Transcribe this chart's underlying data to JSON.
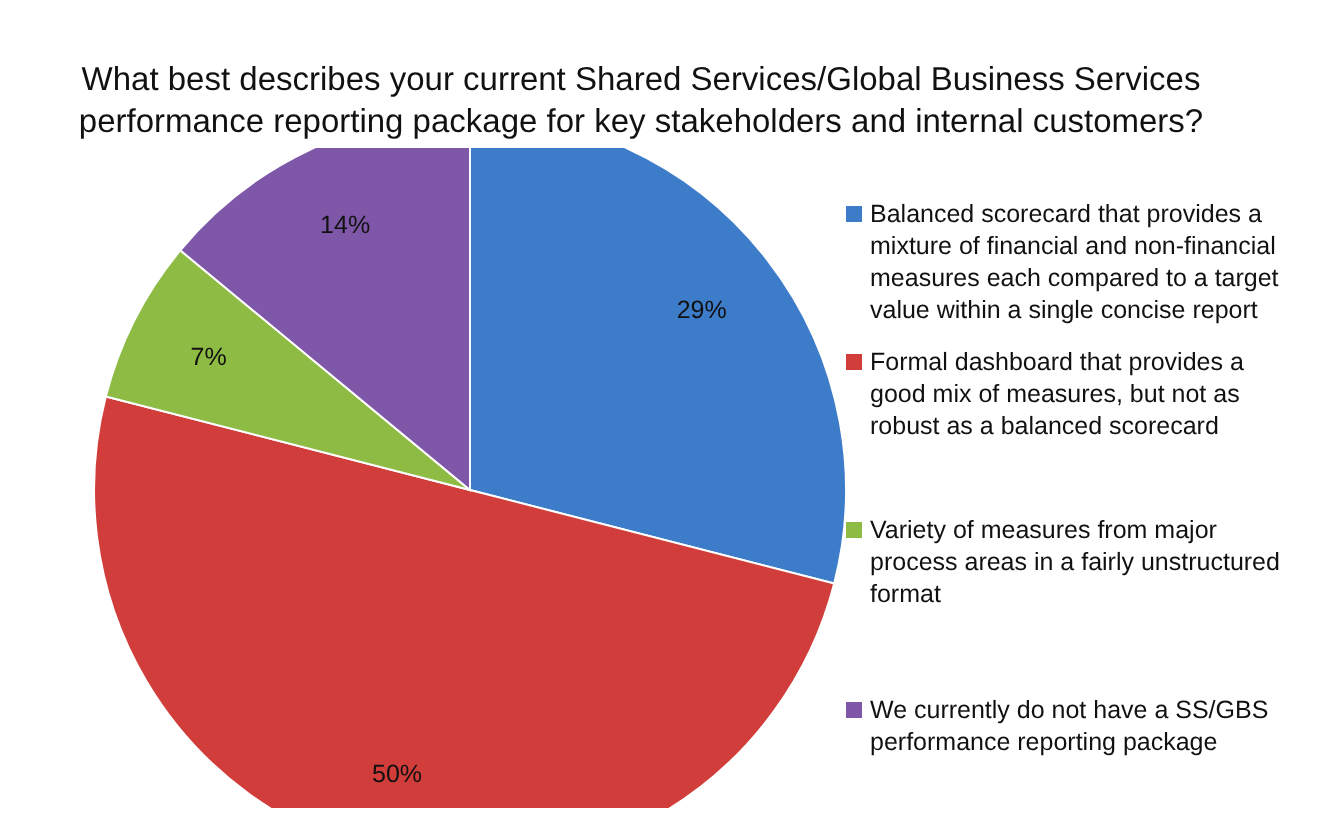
{
  "chart_data": {
    "type": "pie",
    "title": "What best describes your current Shared Services/Global Business Services performance reporting package for key stakeholders and internal customers?",
    "categories": [
      "Balanced scorecard that provides a mixture of financial and non-financial measures each compared to a target value within a single concise report",
      "Formal dashboard that provides a good mix of measures, but not as robust as a balanced scorecard",
      "Variety of measures from major process areas in a fairly unstructured format",
      "We currently do not have a SS/GBS performance reporting package"
    ],
    "values": [
      29,
      50,
      7,
      14
    ],
    "value_labels": [
      "29%",
      "50%",
      "7%",
      "14%"
    ],
    "colors": [
      "#3d7cc9",
      "#d13d3a",
      "#8dbb43",
      "#7f57a8"
    ],
    "legend": "right"
  }
}
